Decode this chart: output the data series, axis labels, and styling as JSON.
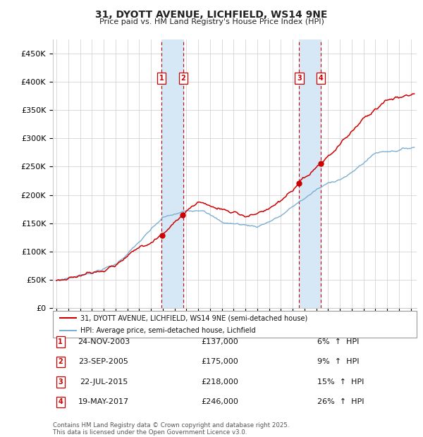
{
  "title": "31, DYOTT AVENUE, LICHFIELD, WS14 9NE",
  "subtitle": "Price paid vs. HM Land Registry's House Price Index (HPI)",
  "ylim": [
    0,
    475000
  ],
  "yticks": [
    0,
    50000,
    100000,
    150000,
    200000,
    250000,
    300000,
    350000,
    400000,
    450000
  ],
  "ytick_labels": [
    "£0",
    "£50K",
    "£100K",
    "£150K",
    "£200K",
    "£250K",
    "£300K",
    "£350K",
    "£400K",
    "£450K"
  ],
  "xlim_start": 1994.7,
  "xlim_end": 2025.5,
  "transactions": [
    {
      "num": 1,
      "date": "24-NOV-2003",
      "year": 2003.9,
      "price": 137000,
      "pct": "6%",
      "dir": "↑"
    },
    {
      "num": 2,
      "date": "23-SEP-2005",
      "year": 2005.72,
      "price": 175000,
      "pct": "9%",
      "dir": "↑"
    },
    {
      "num": 3,
      "date": "22-JUL-2015",
      "year": 2015.56,
      "price": 218000,
      "pct": "15%",
      "dir": "↑"
    },
    {
      "num": 4,
      "date": "19-MAY-2017",
      "year": 2017.38,
      "price": 246000,
      "pct": "26%",
      "dir": "↑"
    }
  ],
  "legend_entries": [
    "31, DYOTT AVENUE, LICHFIELD, WS14 9NE (semi-detached house)",
    "HPI: Average price, semi-detached house, Lichfield"
  ],
  "footnote": "Contains HM Land Registry data © Crown copyright and database right 2025.\nThis data is licensed under the Open Government Licence v3.0.",
  "line_color_red": "#cc0000",
  "line_color_blue": "#7bafd4",
  "highlight_color": "#d6e8f5",
  "box_color": "#cc0000",
  "background_color": "#ffffff",
  "grid_color": "#cccccc"
}
